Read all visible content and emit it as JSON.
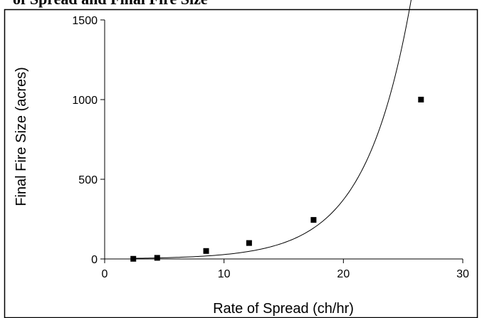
{
  "chart_data": {
    "type": "scatter",
    "title": "of Spread and Final Fire Size",
    "xlabel": "Rate of Spread (ch/hr)",
    "ylabel": "Final Fire Size (acres)",
    "xlim": [
      0,
      30
    ],
    "ylim": [
      0,
      1500
    ],
    "xticks": [
      0,
      10,
      20,
      30
    ],
    "yticks": [
      0,
      500,
      1000,
      1500
    ],
    "grid": false,
    "legend": "none",
    "series": [
      {
        "x": [
          2.4,
          4.4,
          8.5,
          12.1,
          17.5,
          26.5
        ],
        "y": [
          1,
          7,
          50,
          100,
          245,
          1000
        ],
        "marker": "square",
        "color": "#000000"
      }
    ],
    "trendline": {
      "type": "exponential",
      "x_range": [
        2.4,
        26.5
      ],
      "color": "#000000"
    }
  }
}
